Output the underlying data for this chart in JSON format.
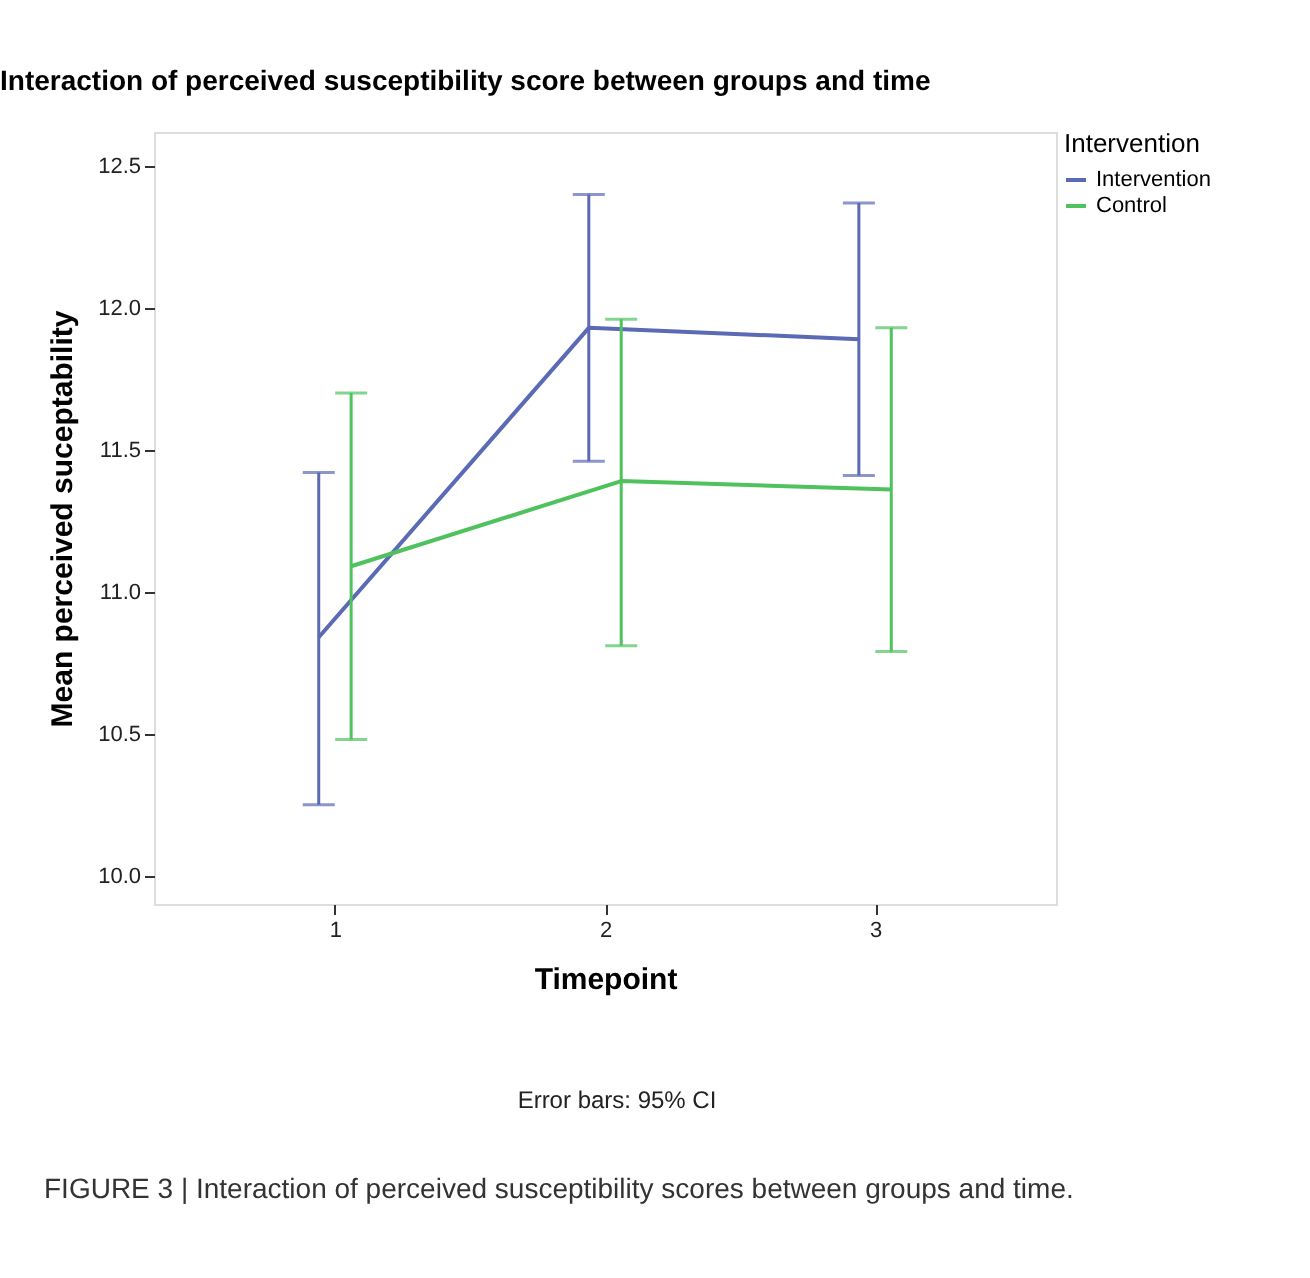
{
  "chart_data": {
    "type": "line",
    "title": "Interaction of perceived susceptibility score between groups and time",
    "xlabel": "Timepoint",
    "ylabel": "Mean perceived suceptability",
    "legend_title": "Intervention",
    "series": [
      {
        "name": "Intervention",
        "color": "#5b6ab4",
        "x": [
          0.94,
          1.94,
          2.94
        ],
        "values": [
          10.84,
          11.93,
          11.89
        ],
        "errors": [
          [
            10.25,
            11.42
          ],
          [
            11.46,
            12.4
          ],
          [
            11.41,
            12.37
          ]
        ]
      },
      {
        "name": "Control",
        "color": "#4fc25e",
        "x": [
          1.06,
          2.06,
          3.06
        ],
        "values": [
          11.09,
          11.39,
          11.36
        ],
        "errors": [
          [
            10.48,
            11.7
          ],
          [
            10.81,
            11.96
          ],
          [
            10.79,
            11.93
          ]
        ]
      }
    ],
    "xlim": [
      0.33,
      3.67
    ],
    "xticks": [
      1,
      2,
      3
    ],
    "ylim": [
      9.9,
      12.62
    ],
    "yticks": [
      {
        "value": 10,
        "label": "10.0"
      },
      10.5,
      {
        "value": 11,
        "label": "11.0"
      },
      11.5,
      {
        "value": 12,
        "label": "12.0"
      },
      12.5
    ],
    "grid": false,
    "legend": "top right",
    "marker": "none",
    "line_style": "solid",
    "annotations": [
      "Error bars: 95% CI",
      "FIGURE 3 | Interaction of perceived susceptibility scores between groups and time."
    ]
  }
}
